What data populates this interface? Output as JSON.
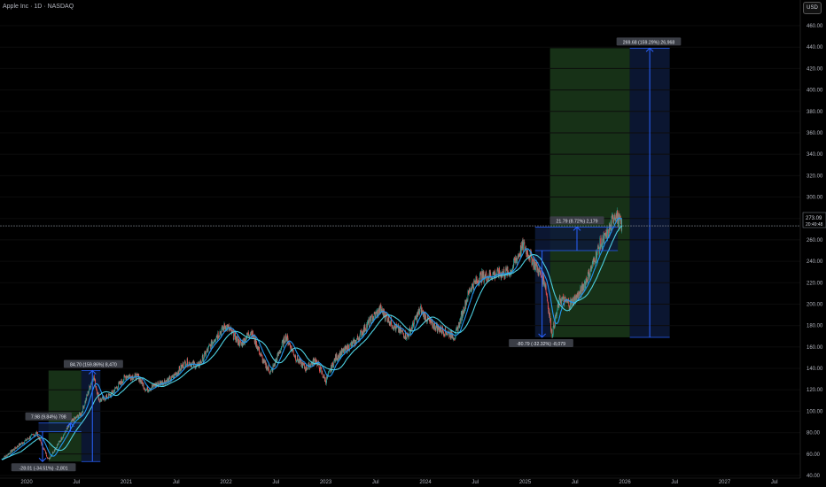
{
  "header": {
    "title": "Apple Inc · 1D · NASDAQ",
    "currency": "USD"
  },
  "price_tag": {
    "price": "273.09",
    "countdown": "20:49:48"
  },
  "colors": {
    "background": "#000000",
    "candle_up": "#26a69a",
    "candle_down": "#ef5350",
    "ma_fast": "#2196f3",
    "ma_slow": "#4dd0e1",
    "zone_green": "#1b3a1b",
    "zone_blue": "#0d1a3a",
    "measure_line": "#2962ff",
    "label_bg": "#3a3d45",
    "price_line": "#8a8f99"
  },
  "chart_data": {
    "type": "candlestick",
    "symbol": "Apple Inc",
    "interval": "1D",
    "exchange": "NASDAQ",
    "ylim": [
      34,
      466
    ],
    "y_ticks": [
      40,
      60,
      80,
      100,
      120,
      140,
      160,
      180,
      200,
      220,
      240,
      260,
      280,
      300,
      320,
      340,
      360,
      380,
      400,
      420,
      440,
      460
    ],
    "x_range": [
      2020.0,
      2027.8
    ],
    "x_ticks": [
      {
        "label": "2020",
        "t": 2020.0
      },
      {
        "label": "Jul",
        "t": 2020.5
      },
      {
        "label": "2021",
        "t": 2021.0
      },
      {
        "label": "Jul",
        "t": 2021.5
      },
      {
        "label": "2022",
        "t": 2022.0
      },
      {
        "label": "Jul",
        "t": 2022.5
      },
      {
        "label": "2023",
        "t": 2023.0
      },
      {
        "label": "Jul",
        "t": 2023.5
      },
      {
        "label": "2024",
        "t": 2024.0
      },
      {
        "label": "Jul",
        "t": 2024.5
      },
      {
        "label": "2025",
        "t": 2025.0
      },
      {
        "label": "Jul",
        "t": 2025.5
      },
      {
        "label": "2026",
        "t": 2026.0
      },
      {
        "label": "Jul",
        "t": 2026.5
      },
      {
        "label": "2027",
        "t": 2027.0
      },
      {
        "label": "Jul",
        "t": 2027.5
      }
    ],
    "price_path": [
      [
        2019.75,
        55
      ],
      [
        2019.92,
        68
      ],
      [
        2020.1,
        80
      ],
      [
        2020.22,
        55
      ],
      [
        2020.32,
        70
      ],
      [
        2020.45,
        90
      ],
      [
        2020.55,
        98
      ],
      [
        2020.67,
        133
      ],
      [
        2020.73,
        110
      ],
      [
        2020.84,
        115
      ],
      [
        2021.0,
        133
      ],
      [
        2021.12,
        132
      ],
      [
        2021.2,
        120
      ],
      [
        2021.3,
        125
      ],
      [
        2021.45,
        130
      ],
      [
        2021.6,
        146
      ],
      [
        2021.72,
        142
      ],
      [
        2021.9,
        170
      ],
      [
        2022.0,
        180
      ],
      [
        2022.15,
        162
      ],
      [
        2022.25,
        175
      ],
      [
        2022.38,
        145
      ],
      [
        2022.45,
        136
      ],
      [
        2022.6,
        170
      ],
      [
        2022.7,
        150
      ],
      [
        2022.8,
        140
      ],
      [
        2022.9,
        148
      ],
      [
        2023.0,
        128
      ],
      [
        2023.1,
        150
      ],
      [
        2023.3,
        165
      ],
      [
        2023.45,
        185
      ],
      [
        2023.55,
        195
      ],
      [
        2023.7,
        178
      ],
      [
        2023.82,
        170
      ],
      [
        2023.95,
        195
      ],
      [
        2024.05,
        182
      ],
      [
        2024.18,
        175
      ],
      [
        2024.3,
        170
      ],
      [
        2024.45,
        215
      ],
      [
        2024.55,
        225
      ],
      [
        2024.7,
        228
      ],
      [
        2024.85,
        230
      ],
      [
        2024.98,
        255
      ],
      [
        2025.08,
        240
      ],
      [
        2025.2,
        220
      ],
      [
        2025.27,
        172
      ],
      [
        2025.35,
        205
      ],
      [
        2025.45,
        200
      ],
      [
        2025.55,
        210
      ],
      [
        2025.65,
        230
      ],
      [
        2025.75,
        255
      ],
      [
        2025.83,
        265
      ],
      [
        2025.9,
        285
      ],
      [
        2025.97,
        273
      ]
    ],
    "measures": [
      {
        "label": "-28.01 (-34.51%) -2,801",
        "t_from": 2020.12,
        "t_to": 2020.22,
        "p_from": 81,
        "p_to": 53,
        "zone": "blue"
      },
      {
        "label": "7.98 (9.84%) 798",
        "t_from": 2020.12,
        "t_to": 2020.55,
        "p_from": 81,
        "p_to": 89,
        "zone": "blue"
      },
      {
        "label": "84.70 (159.86%) 8,470",
        "t_from": 2020.22,
        "t_to": 2020.74,
        "p_from": 53,
        "p_to": 138,
        "zone": "green+blue"
      },
      {
        "label": "-80.79 (-32.32%) -8,079",
        "t_from": 2025.1,
        "t_to": 2025.25,
        "p_from": 250,
        "p_to": 169,
        "zone": "blue"
      },
      {
        "label": "21.79 (8.72%) 2,179",
        "t_from": 2025.1,
        "t_to": 2025.93,
        "p_from": 250,
        "p_to": 272,
        "zone": "blue"
      },
      {
        "label": "269.68 (159.29%) 26,968",
        "t_from": 2025.25,
        "t_to": 2026.45,
        "p_from": 169,
        "p_to": 439,
        "zone": "green+blue"
      }
    ]
  }
}
